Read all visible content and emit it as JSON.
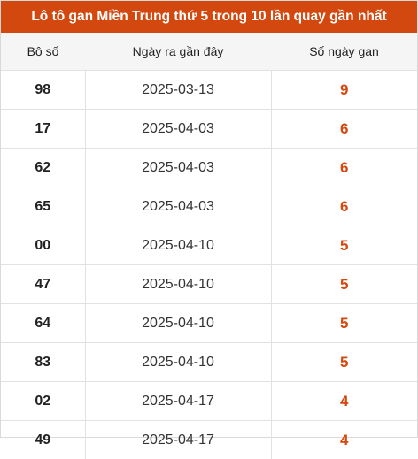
{
  "title": "Lô tô gan Miền Trung thứ 5 trong 10 lần quay gần nhất",
  "headers": {
    "number": "Bộ số",
    "date": "Ngày ra gần đây",
    "days": "Số ngày gan"
  },
  "rows": [
    {
      "number": "98",
      "date": "2025-03-13",
      "days": "9"
    },
    {
      "number": "17",
      "date": "2025-04-03",
      "days": "6"
    },
    {
      "number": "62",
      "date": "2025-04-03",
      "days": "6"
    },
    {
      "number": "65",
      "date": "2025-04-03",
      "days": "6"
    },
    {
      "number": "00",
      "date": "2025-04-10",
      "days": "5"
    },
    {
      "number": "47",
      "date": "2025-04-10",
      "days": "5"
    },
    {
      "number": "64",
      "date": "2025-04-10",
      "days": "5"
    },
    {
      "number": "83",
      "date": "2025-04-10",
      "days": "5"
    },
    {
      "number": "02",
      "date": "2025-04-17",
      "days": "4"
    },
    {
      "number": "49",
      "date": "2025-04-17",
      "days": "4"
    }
  ],
  "colors": {
    "accent": "#d3480f",
    "header_bg": "#f5f5f5",
    "border": "#e2e2e2"
  }
}
